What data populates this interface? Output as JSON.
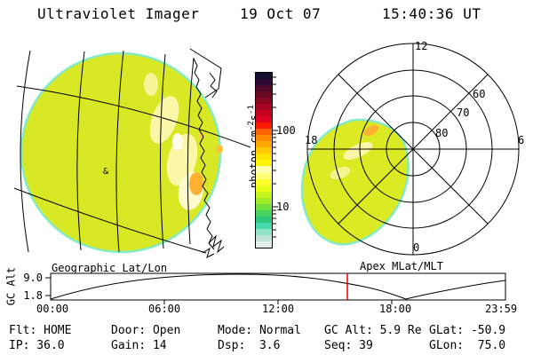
{
  "header": {
    "title": "Ultraviolet Imager",
    "date": "19 Oct 07",
    "time": "15:40:36 UT"
  },
  "colorbar": {
    "unit_prefix": "photon cm",
    "unit_sup1": "-2",
    "unit_mid": "s",
    "unit_sup2": "-1",
    "tick_major_top": "100",
    "tick_major_bottom": "10",
    "colors": [
      "#10102e",
      "#2e0830",
      "#4c0828",
      "#6a0824",
      "#880822",
      "#a60420",
      "#c40420",
      "#e20220",
      "#ff1a00",
      "#ff6000",
      "#ff8c00",
      "#ffaa00",
      "#ffc800",
      "#ffe200",
      "#fff600",
      "#ffffb0",
      "#ffff78",
      "#ffff30",
      "#e8fc14",
      "#c8f41c",
      "#a0ec28",
      "#70e03c",
      "#48d45c",
      "#2cc87c",
      "#48d8ac",
      "#90e4cc",
      "#c0e4dc",
      "#e4eee8"
    ]
  },
  "disk": {
    "caption": "Geographic Lat/Lon",
    "marker": "&"
  },
  "polar": {
    "caption": "Apex MLat/MLT",
    "clock_top": "12",
    "clock_left": "18",
    "clock_right": "6",
    "clock_bottom": "0",
    "ring_labels": [
      "60",
      "70",
      "80"
    ]
  },
  "strip": {
    "ylabel": "GC Alt",
    "ytick_top": "9.0",
    "ytick_bottom": "1.8",
    "xticks": [
      "00:00",
      "06:00",
      "12:00",
      "18:00",
      "23:59"
    ]
  },
  "status": {
    "row1": [
      "Flt: HOME",
      "Door: Open",
      "Mode: Normal",
      "GC Alt: 5.9 Re",
      "GLat: -50.9"
    ],
    "row2": [
      "IP: 36.0",
      "Gain: 14",
      "Dsp:  3.6",
      "Seq: 39",
      "GLon:  75.0"
    ]
  },
  "palette": {
    "disk_fill": "#d9e824",
    "disk_rim": "#84ebc6",
    "hotspot_orange": "#ffb132",
    "pale_patch": "#fbf7a8",
    "grid_line": "#000000",
    "cursor_red": "#e00000"
  }
}
